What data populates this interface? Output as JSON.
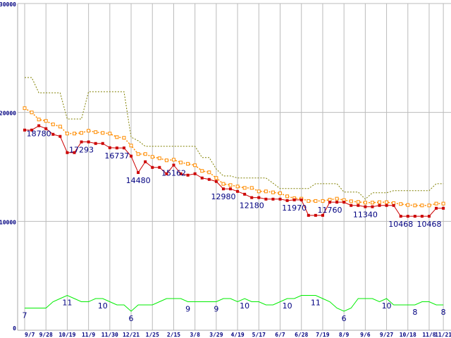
{
  "chart_data": {
    "type": "line",
    "title": "",
    "xlabel": "",
    "ylabel": "",
    "ylim": [
      0,
      30000
    ],
    "yticks": [
      "0",
      "10000",
      "20000",
      "30000"
    ],
    "grid": true,
    "x_tick_labels": [
      "9/7",
      "9/28",
      "10/19",
      "11/9",
      "11/30",
      "12/21",
      "1/25",
      "2/15",
      "3/8",
      "3/29",
      "4/19",
      "5/17",
      "6/7",
      "6/28",
      "7/19",
      "8/9",
      "9/6",
      "9/27",
      "10/18",
      "11/8",
      "11/21"
    ],
    "x_tick_indices": [
      0,
      3,
      6,
      9,
      12,
      15,
      18,
      21,
      24,
      27,
      30,
      33,
      36,
      39,
      42,
      45,
      48,
      51,
      54,
      57,
      59
    ],
    "point_count": 60,
    "series": [
      {
        "name": "max",
        "color": "#808000",
        "style": "dashed-step",
        "values": [
          23200,
          23200,
          21800,
          21800,
          21800,
          21800,
          19400,
          19400,
          19400,
          21900,
          21900,
          21900,
          21900,
          21900,
          21900,
          17730,
          17400,
          16890,
          16890,
          16890,
          16890,
          16890,
          16890,
          16890,
          16890,
          15860,
          15860,
          14800,
          14170,
          14170,
          13980,
          13980,
          13980,
          13980,
          13980,
          13500,
          13010,
          13010,
          13010,
          13010,
          13010,
          13460,
          13460,
          13460,
          13460,
          12690,
          12690,
          12690,
          12040,
          12620,
          12620,
          12620,
          12820,
          12820,
          12820,
          12820,
          12820,
          12820,
          13460,
          13460
        ]
      },
      {
        "name": "average",
        "color": "#ff8c00",
        "style": "dotted-square",
        "values": [
          20390,
          20000,
          19350,
          19220,
          18900,
          18700,
          18060,
          18060,
          18120,
          18320,
          18190,
          18120,
          18060,
          17730,
          17670,
          16960,
          16180,
          16180,
          15920,
          15790,
          15600,
          15660,
          15400,
          15280,
          15150,
          14630,
          14500,
          13980,
          13440,
          13330,
          13200,
          13070,
          13070,
          12750,
          12750,
          12660,
          12580,
          12300,
          12120,
          12080,
          11870,
          11870,
          11870,
          11990,
          12080,
          11950,
          11840,
          11780,
          11720,
          11720,
          11760,
          11760,
          11670,
          11590,
          11500,
          11460,
          11460,
          11460,
          11630,
          11630
        ]
      },
      {
        "name": "min",
        "color": "#cc0000",
        "style": "solid-square",
        "values": [
          18380,
          18380,
          18780,
          18510,
          17990,
          17800,
          16310,
          16310,
          17293,
          17293,
          17150,
          17150,
          16760,
          16737,
          16737,
          15990,
          14480,
          15470,
          14950,
          14950,
          14370,
          15162,
          14370,
          14240,
          14370,
          13980,
          13850,
          13660,
          12980,
          12980,
          12750,
          12490,
          12180,
          12180,
          12040,
          12040,
          12040,
          11910,
          11970,
          11970,
          10550,
          10550,
          10550,
          11760,
          11760,
          11760,
          11460,
          11460,
          11340,
          11340,
          11460,
          11460,
          11460,
          10468,
          10468,
          10468,
          10468,
          10468,
          11200,
          11200
        ],
        "labels": [
          {
            "index": 2,
            "text": "18780"
          },
          {
            "index": 8,
            "text": "17293"
          },
          {
            "index": 13,
            "text": "16737"
          },
          {
            "index": 16,
            "text": "14480"
          },
          {
            "index": 21,
            "text": "15162"
          },
          {
            "index": 28,
            "text": "12980"
          },
          {
            "index": 32,
            "text": "12180"
          },
          {
            "index": 38,
            "text": "11970"
          },
          {
            "index": 43,
            "text": "11760"
          },
          {
            "index": 48,
            "text": "11340"
          },
          {
            "index": 53,
            "text": "10468"
          },
          {
            "index": 57,
            "text": "10468"
          }
        ]
      },
      {
        "name": "count",
        "color": "#00ee00",
        "style": "solid",
        "values": [
          7,
          7,
          7,
          7,
          9,
          10,
          11,
          10,
          9,
          9,
          10,
          10,
          9,
          8,
          8,
          6,
          8,
          8,
          8,
          9,
          10,
          10,
          10,
          9,
          9,
          9,
          9,
          9,
          10,
          10,
          9,
          10,
          9,
          9,
          8,
          8,
          9,
          10,
          10,
          11,
          11,
          11,
          10,
          9,
          7,
          6,
          7,
          10,
          10,
          10,
          9,
          10,
          8,
          8,
          8,
          8,
          9,
          9,
          8,
          8
        ],
        "labels": [
          {
            "index": 0,
            "text": "7"
          },
          {
            "index": 6,
            "text": "11"
          },
          {
            "index": 11,
            "text": "10"
          },
          {
            "index": 15,
            "text": "6"
          },
          {
            "index": 23,
            "text": "9"
          },
          {
            "index": 27,
            "text": "9"
          },
          {
            "index": 31,
            "text": "10"
          },
          {
            "index": 37,
            "text": "10"
          },
          {
            "index": 41,
            "text": "11"
          },
          {
            "index": 45,
            "text": "6"
          },
          {
            "index": 51,
            "text": "10"
          },
          {
            "index": 55,
            "text": "8"
          },
          {
            "index": 59,
            "text": "8"
          }
        ]
      }
    ]
  }
}
